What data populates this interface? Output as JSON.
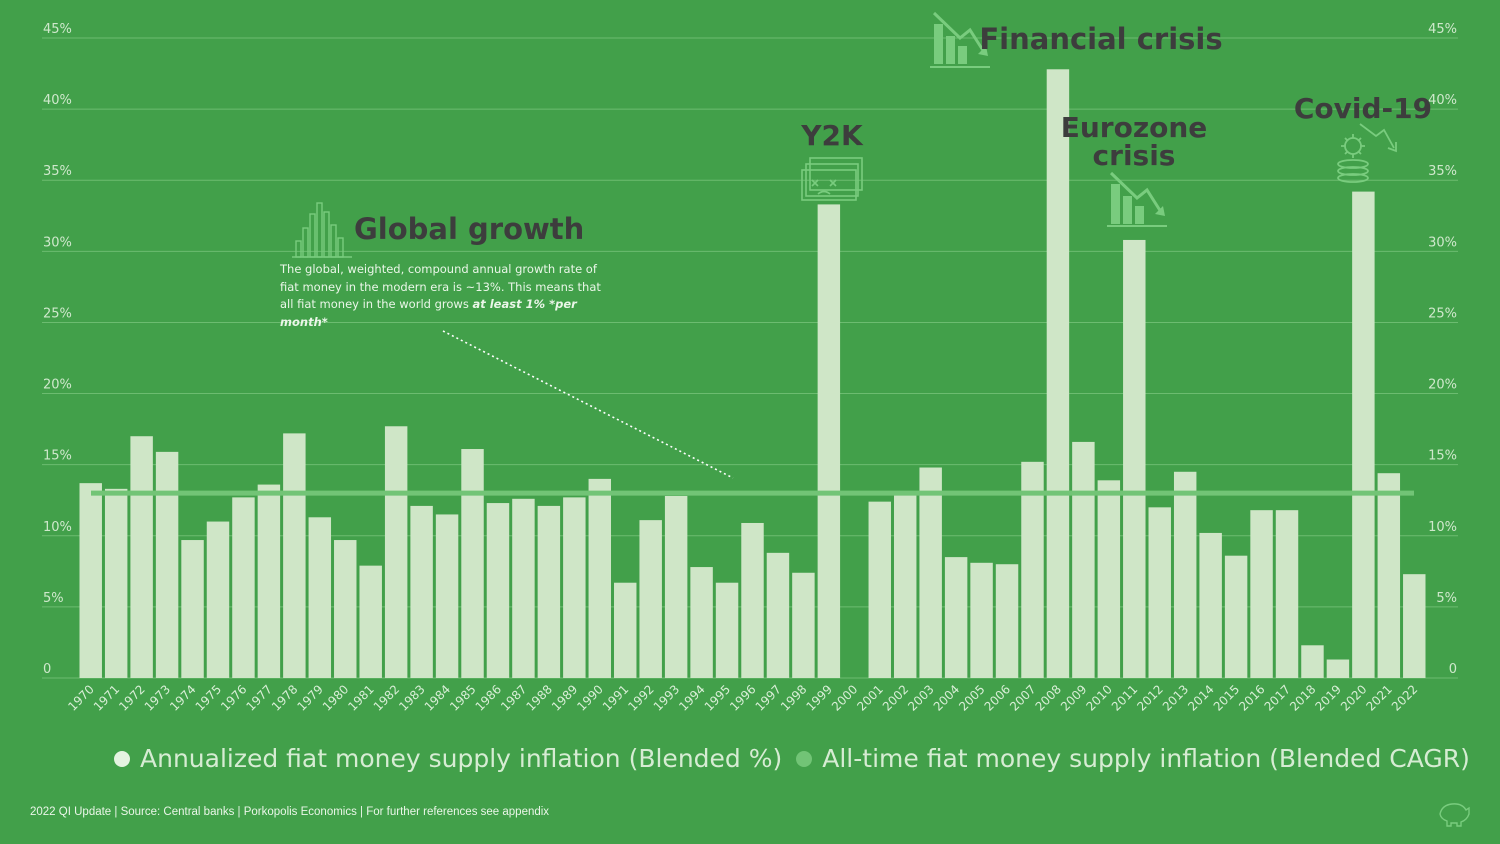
{
  "chart_data": {
    "type": "bar",
    "categories": [
      "1970",
      "1971",
      "1972",
      "1973",
      "1974",
      "1975",
      "1976",
      "1977",
      "1978",
      "1979",
      "1980",
      "1981",
      "1982",
      "1983",
      "1984",
      "1985",
      "1986",
      "1987",
      "1988",
      "1989",
      "1990",
      "1991",
      "1992",
      "1993",
      "1994",
      "1995",
      "1996",
      "1997",
      "1998",
      "1999",
      "2000",
      "2001",
      "2002",
      "2003",
      "2004",
      "2005",
      "2006",
      "2007",
      "2008",
      "2009",
      "2010",
      "2011",
      "2012",
      "2013",
      "2014",
      "2015",
      "2016",
      "2017",
      "2018",
      "2019",
      "2020",
      "2021",
      "2022"
    ],
    "series": [
      {
        "name": "Annualized fiat money supply inflation (Blended %)",
        "values": [
          13.7,
          13.3,
          17.0,
          15.9,
          9.7,
          11.0,
          12.7,
          13.6,
          17.2,
          11.3,
          9.7,
          7.9,
          17.7,
          12.1,
          11.5,
          16.1,
          12.3,
          12.6,
          12.1,
          12.7,
          14.0,
          6.7,
          11.1,
          12.8,
          7.8,
          6.7,
          10.9,
          8.8,
          7.4,
          33.3,
          0,
          12.4,
          12.9,
          14.8,
          8.5,
          8.1,
          8.0,
          15.2,
          42.8,
          16.6,
          13.9,
          30.8,
          12.0,
          14.5,
          10.2,
          8.6,
          11.8,
          11.8,
          2.3,
          1.3,
          34.2,
          14.4,
          7.3
        ]
      },
      {
        "name": "All-time fiat money supply inflation (Blended CAGR)",
        "value": 13.0
      }
    ],
    "y_ticks": [
      "0",
      "5%",
      "10%",
      "15%",
      "20%",
      "25%",
      "30%",
      "35%",
      "40%",
      "45%"
    ],
    "ylim": [
      0,
      45
    ],
    "grid": true,
    "legend_position": "bottom-center",
    "annotations": [
      {
        "title": "Global growth",
        "icon": "bar-growth-icon"
      },
      {
        "title": "Y2K",
        "icon": "broken-screen-icon"
      },
      {
        "title": "Financial crisis",
        "icon": "chart-down-icon"
      },
      {
        "title": "Eurozone crisis",
        "icon": "chart-down-icon"
      },
      {
        "title": "Covid-19",
        "icon": "virus-coins-icon"
      }
    ],
    "note": {
      "text": "The global, weighted, compound annual growth rate of fiat money in the modern era is ~13%. This means that all fiat money in the world grows ",
      "emphasis": "at least 1% *per month*"
    }
  },
  "colors": {
    "background": "#42a04a",
    "bar": "#cfe6c7",
    "cagr_line": "#72c476",
    "annotation_text": "#3d3d3d"
  },
  "legend": {
    "item1": "Annualized fiat money supply inflation (Blended %)",
    "item2": "All-time fiat money supply inflation (Blended CAGR)"
  },
  "footer": "2022 QI Update | Source: Central banks | Porkopolis Economics | For further references see appendix"
}
